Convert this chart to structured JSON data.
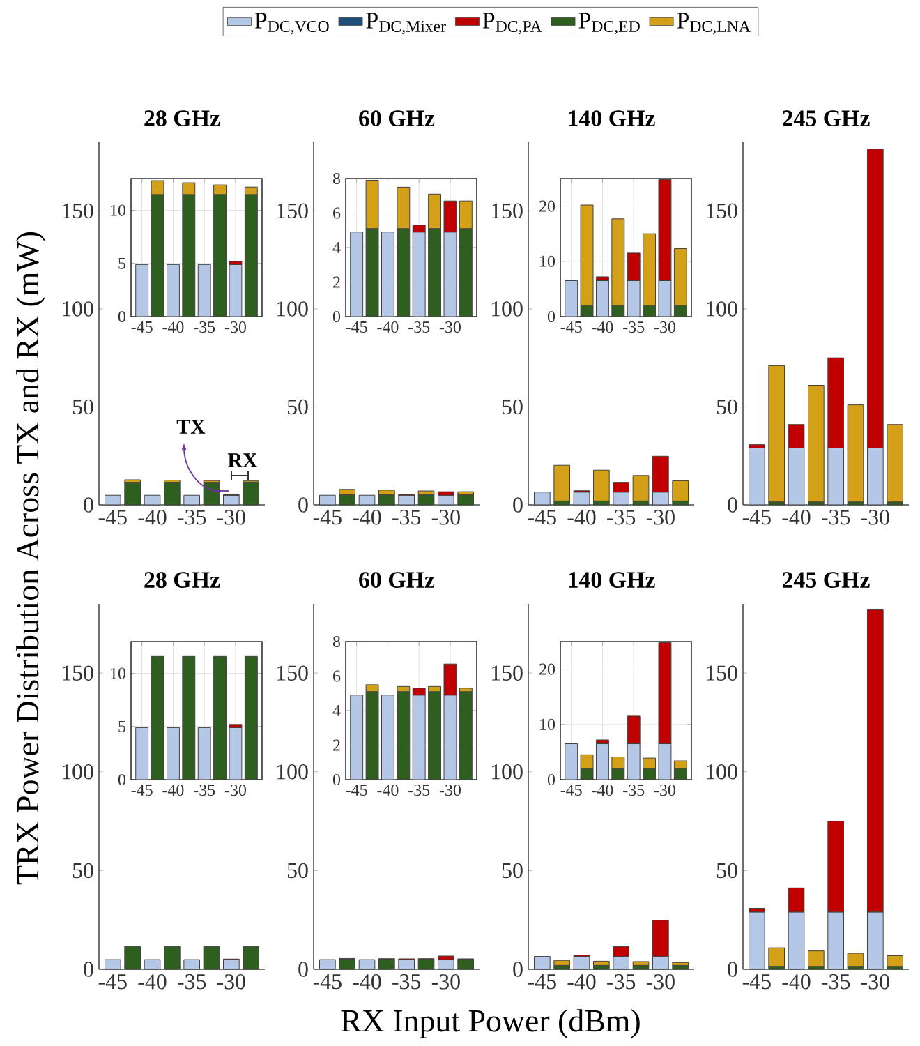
{
  "chart_data": [
    {
      "type": "bar",
      "stacked": true,
      "title": "28 GHz",
      "legend": "top",
      "ylabel": "TRX Power Distribution Across TX and RX (mW)",
      "annotations": [
        "TX",
        "RX"
      ],
      "categories": [
        "-45",
        null,
        "-40",
        null,
        "-35",
        null,
        "-30",
        null
      ],
      "ylim": [
        0,
        185
      ],
      "yticks": [
        0,
        50,
        100,
        150
      ],
      "series": [
        {
          "name": "P$_{DC,VCO}$",
          "color": "#b4c7e7",
          "values": [
            4.9,
            null,
            4.9,
            null,
            4.9,
            null,
            4.9,
            null
          ]
        },
        {
          "name": "P$_{DC,Mixer}$",
          "color": "#1f4e79",
          "values": [
            null,
            null,
            null,
            null,
            null,
            null,
            null,
            null
          ]
        },
        {
          "name": "P$_{DC,PA}$",
          "color": "#c00000",
          "values": [
            null,
            null,
            null,
            null,
            null,
            null,
            0.3,
            null
          ]
        },
        {
          "name": "P$_{DC,ED}$",
          "color": "#2f5f1f",
          "values": [
            null,
            11.5,
            null,
            11.5,
            null,
            11.5,
            null,
            11.5
          ]
        },
        {
          "name": "P$_{DC,LNA}$",
          "color": "#d4a017",
          "values": [
            null,
            1.3,
            null,
            1.1,
            null,
            0.9,
            null,
            0.7
          ]
        }
      ]
    },
    {
      "type": "bar",
      "stacked": true,
      "grid": true,
      "categories": [
        "-45",
        null,
        "-40",
        null,
        "-35",
        null,
        "-30",
        null
      ],
      "ylim": [
        0,
        13
      ],
      "yticks": [
        0,
        5,
        10
      ],
      "series": [
        {
          "color": "#b4c7e7",
          "values": [
            4.9,
            null,
            4.9,
            null,
            4.9,
            null,
            4.9,
            null
          ]
        },
        {
          "color": "#c00000",
          "values": [
            null,
            null,
            null,
            null,
            null,
            null,
            0.3,
            null
          ]
        },
        {
          "color": "#2f5f1f",
          "values": [
            null,
            11.5,
            null,
            11.5,
            null,
            11.5,
            null,
            11.5
          ]
        },
        {
          "color": "#d4a017",
          "values": [
            null,
            1.3,
            null,
            1.1,
            null,
            0.9,
            null,
            0.7
          ]
        }
      ]
    },
    {
      "type": "bar",
      "stacked": true,
      "title": "60 GHz",
      "categories": [
        "-45",
        null,
        "-40",
        null,
        "-35",
        null,
        "-30",
        null
      ],
      "ylim": [
        0,
        185
      ],
      "yticks": [
        0,
        50,
        100,
        150
      ],
      "series": [
        {
          "color": "#b4c7e7",
          "values": [
            4.9,
            null,
            4.9,
            null,
            4.9,
            null,
            4.9,
            null
          ]
        },
        {
          "color": "#c00000",
          "values": [
            null,
            null,
            null,
            null,
            0.4,
            null,
            1.8,
            null
          ]
        },
        {
          "color": "#2f5f1f",
          "values": [
            null,
            5.1,
            null,
            5.1,
            null,
            5.1,
            null,
            5.1
          ]
        },
        {
          "color": "#d4a017",
          "values": [
            null,
            2.8,
            null,
            2.4,
            null,
            2.0,
            null,
            1.6
          ]
        }
      ]
    },
    {
      "type": "bar",
      "stacked": true,
      "grid": true,
      "categories": [
        "-45",
        null,
        "-40",
        null,
        "-35",
        null,
        "-30",
        null
      ],
      "ylim": [
        0,
        8
      ],
      "yticks": [
        0,
        2,
        4,
        6,
        8
      ],
      "series": [
        {
          "color": "#b4c7e7",
          "values": [
            4.9,
            null,
            4.9,
            null,
            4.9,
            null,
            4.9,
            null
          ]
        },
        {
          "color": "#c00000",
          "values": [
            null,
            null,
            null,
            null,
            0.4,
            null,
            1.8,
            null
          ]
        },
        {
          "color": "#2f5f1f",
          "values": [
            null,
            5.1,
            null,
            5.1,
            null,
            5.1,
            null,
            5.1
          ]
        },
        {
          "color": "#d4a017",
          "values": [
            null,
            2.8,
            null,
            2.4,
            null,
            2.0,
            null,
            1.6
          ]
        }
      ]
    },
    {
      "type": "bar",
      "stacked": true,
      "title": "140 GHz",
      "categories": [
        "-45",
        null,
        "-40",
        null,
        "-35",
        null,
        "-30",
        null
      ],
      "ylim": [
        0,
        185
      ],
      "yticks": [
        0,
        50,
        100,
        150
      ],
      "series": [
        {
          "color": "#b4c7e7",
          "values": [
            6.5,
            null,
            6.5,
            null,
            6.5,
            null,
            6.5,
            null
          ]
        },
        {
          "color": "#c00000",
          "values": [
            null,
            null,
            0.7,
            null,
            5,
            null,
            18.3,
            null
          ]
        },
        {
          "color": "#2f5f1f",
          "values": [
            null,
            2,
            null,
            2,
            null,
            2,
            null,
            2
          ]
        },
        {
          "color": "#d4a017",
          "values": [
            null,
            18.2,
            null,
            15.7,
            null,
            13,
            null,
            10.3
          ]
        }
      ]
    },
    {
      "type": "bar",
      "stacked": true,
      "grid": true,
      "categories": [
        "-45",
        null,
        "-40",
        null,
        "-35",
        null,
        "-30",
        null
      ],
      "ylim": [
        0,
        25
      ],
      "yticks": [
        0,
        10,
        20
      ],
      "series": [
        {
          "color": "#b4c7e7",
          "values": [
            6.5,
            null,
            6.5,
            null,
            6.5,
            null,
            6.5,
            null
          ]
        },
        {
          "color": "#c00000",
          "values": [
            null,
            null,
            0.7,
            null,
            5,
            null,
            18.3,
            null
          ]
        },
        {
          "color": "#2f5f1f",
          "values": [
            null,
            2,
            null,
            2,
            null,
            2,
            null,
            2
          ]
        },
        {
          "color": "#d4a017",
          "values": [
            null,
            18.2,
            null,
            15.7,
            null,
            13,
            null,
            10.3
          ]
        }
      ]
    },
    {
      "type": "bar",
      "stacked": true,
      "title": "245 GHz",
      "categories": [
        "-45",
        null,
        "-40",
        null,
        "-35",
        null,
        "-30",
        null
      ],
      "ylim": [
        0,
        185
      ],
      "yticks": [
        0,
        50,
        100,
        150
      ],
      "series": [
        {
          "color": "#b4c7e7",
          "values": [
            29,
            null,
            29,
            null,
            29,
            null,
            29,
            null
          ]
        },
        {
          "color": "#c00000",
          "values": [
            1.7,
            null,
            12,
            null,
            46,
            null,
            152.5,
            null
          ]
        },
        {
          "color": "#2f5f1f",
          "values": [
            null,
            1.5,
            null,
            1.5,
            null,
            1.5,
            null,
            1.5
          ]
        },
        {
          "color": "#d4a017",
          "values": [
            null,
            69.5,
            null,
            59.5,
            null,
            49.5,
            null,
            39.5
          ]
        }
      ]
    },
    {
      "type": "bar",
      "stacked": true,
      "title": "28 GHz",
      "categories": [
        "-45",
        null,
        "-40",
        null,
        "-35",
        null,
        "-30",
        null
      ],
      "ylim": [
        0,
        185
      ],
      "yticks": [
        0,
        50,
        100,
        150
      ],
      "series": [
        {
          "color": "#b4c7e7",
          "values": [
            4.9,
            null,
            4.9,
            null,
            4.9,
            null,
            4.9,
            null
          ]
        },
        {
          "color": "#c00000",
          "values": [
            null,
            null,
            null,
            null,
            null,
            null,
            0.3,
            null
          ]
        },
        {
          "color": "#2f5f1f",
          "values": [
            null,
            11.6,
            null,
            11.6,
            null,
            11.6,
            null,
            11.6
          ]
        }
      ]
    },
    {
      "type": "bar",
      "stacked": true,
      "grid": true,
      "categories": [
        "-45",
        null,
        "-40",
        null,
        "-35",
        null,
        "-30",
        null
      ],
      "ylim": [
        0,
        13
      ],
      "yticks": [
        0,
        5,
        10
      ],
      "series": [
        {
          "color": "#b4c7e7",
          "values": [
            4.9,
            null,
            4.9,
            null,
            4.9,
            null,
            4.9,
            null
          ]
        },
        {
          "color": "#c00000",
          "values": [
            null,
            null,
            null,
            null,
            null,
            null,
            0.3,
            null
          ]
        },
        {
          "color": "#2f5f1f",
          "values": [
            null,
            11.6,
            null,
            11.6,
            null,
            11.6,
            null,
            11.6
          ]
        }
      ]
    },
    {
      "type": "bar",
      "stacked": true,
      "title": "60 GHz",
      "categories": [
        "-45",
        null,
        "-40",
        null,
        "-35",
        null,
        "-30",
        null
      ],
      "ylim": [
        0,
        185
      ],
      "yticks": [
        0,
        50,
        100,
        150
      ],
      "series": [
        {
          "color": "#b4c7e7",
          "values": [
            4.9,
            null,
            4.9,
            null,
            4.9,
            null,
            4.9,
            null
          ]
        },
        {
          "color": "#c00000",
          "values": [
            null,
            null,
            null,
            null,
            0.4,
            null,
            1.8,
            null
          ]
        },
        {
          "color": "#2f5f1f",
          "values": [
            null,
            5.1,
            null,
            5.1,
            null,
            5.1,
            null,
            5.1
          ]
        },
        {
          "color": "#d4a017",
          "values": [
            null,
            0.4,
            null,
            0.3,
            null,
            0.3,
            null,
            0.2
          ]
        }
      ]
    },
    {
      "type": "bar",
      "stacked": true,
      "grid": true,
      "categories": [
        "-45",
        null,
        "-40",
        null,
        "-35",
        null,
        "-30",
        null
      ],
      "ylim": [
        0,
        8
      ],
      "yticks": [
        0,
        2,
        4,
        6,
        8
      ],
      "series": [
        {
          "color": "#b4c7e7",
          "values": [
            4.9,
            null,
            4.9,
            null,
            4.9,
            null,
            4.9,
            null
          ]
        },
        {
          "color": "#c00000",
          "values": [
            null,
            null,
            null,
            null,
            0.4,
            null,
            1.8,
            null
          ]
        },
        {
          "color": "#2f5f1f",
          "values": [
            null,
            5.1,
            null,
            5.1,
            null,
            5.1,
            null,
            5.1
          ]
        },
        {
          "color": "#d4a017",
          "values": [
            null,
            0.4,
            null,
            0.3,
            null,
            0.3,
            null,
            0.2
          ]
        }
      ]
    },
    {
      "type": "bar",
      "stacked": true,
      "title": "140 GHz",
      "categories": [
        "-45",
        null,
        "-40",
        null,
        "-35",
        null,
        "-30",
        null
      ],
      "ylim": [
        0,
        185
      ],
      "yticks": [
        0,
        50,
        100,
        150
      ],
      "series": [
        {
          "color": "#b4c7e7",
          "values": [
            6.5,
            null,
            6.5,
            null,
            6.5,
            null,
            6.5,
            null
          ]
        },
        {
          "color": "#c00000",
          "values": [
            null,
            null,
            0.7,
            null,
            5,
            null,
            18.3,
            null
          ]
        },
        {
          "color": "#2f5f1f",
          "values": [
            null,
            2,
            null,
            2,
            null,
            2,
            null,
            2
          ]
        },
        {
          "color": "#d4a017",
          "values": [
            null,
            2.5,
            null,
            2.1,
            null,
            1.9,
            null,
            1.4
          ]
        }
      ]
    },
    {
      "type": "bar",
      "stacked": true,
      "grid": true,
      "categories": [
        "-45",
        null,
        "-40",
        null,
        "-35",
        null,
        "-30",
        null
      ],
      "ylim": [
        0,
        25
      ],
      "yticks": [
        0,
        10,
        20
      ],
      "series": [
        {
          "color": "#b4c7e7",
          "values": [
            6.5,
            null,
            6.5,
            null,
            6.5,
            null,
            6.5,
            null
          ]
        },
        {
          "color": "#c00000",
          "values": [
            null,
            null,
            0.7,
            null,
            5,
            null,
            18.3,
            null
          ]
        },
        {
          "color": "#2f5f1f",
          "values": [
            null,
            2,
            null,
            2,
            null,
            2,
            null,
            2
          ]
        },
        {
          "color": "#d4a017",
          "values": [
            null,
            2.5,
            null,
            2.1,
            null,
            1.9,
            null,
            1.4
          ]
        }
      ]
    },
    {
      "type": "bar",
      "stacked": true,
      "title": "245 GHz",
      "xlabel": "RX Input Power (dBm)",
      "categories": [
        "-45",
        null,
        "-40",
        null,
        "-35",
        null,
        "-30",
        null
      ],
      "ylim": [
        0,
        185
      ],
      "yticks": [
        0,
        50,
        100,
        150
      ],
      "series": [
        {
          "color": "#b4c7e7",
          "values": [
            29,
            null,
            29,
            null,
            29,
            null,
            29,
            null
          ]
        },
        {
          "color": "#c00000",
          "values": [
            1.9,
            null,
            12.2,
            null,
            46,
            null,
            153,
            null
          ]
        },
        {
          "color": "#2f5f1f",
          "values": [
            null,
            1.5,
            null,
            1.5,
            null,
            1.5,
            null,
            1.5
          ]
        },
        {
          "color": "#d4a017",
          "values": [
            null,
            9.4,
            null,
            7.8,
            null,
            6.6,
            null,
            5.4
          ]
        }
      ]
    }
  ]
}
